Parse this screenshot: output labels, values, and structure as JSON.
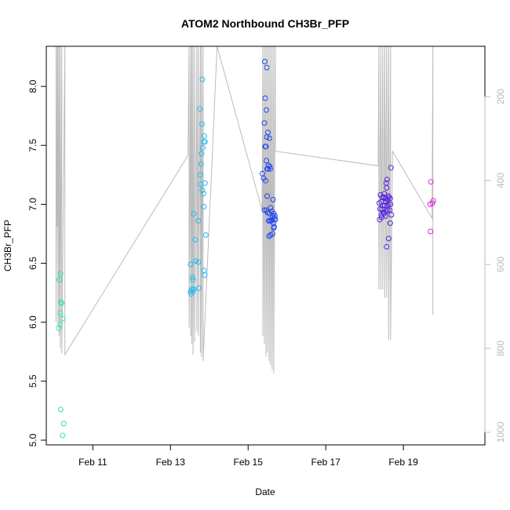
{
  "chart_data": {
    "type": "scatter",
    "title": "ATOM2 Northbound CH3Br_PFP",
    "xlabel": "Date",
    "ylabel": "CH3Br_PFP",
    "xlim": [
      9.8,
      21.1
    ],
    "ylim": [
      4.96,
      8.34
    ],
    "x_ticks": [
      {
        "value": 11,
        "label": "Feb 11"
      },
      {
        "value": 13,
        "label": "Feb 13"
      },
      {
        "value": 15,
        "label": "Feb 15"
      },
      {
        "value": 17,
        "label": "Feb 17"
      },
      {
        "value": 19,
        "label": "Feb 19"
      }
    ],
    "y_ticks": [
      {
        "value": 5.0,
        "label": "5.0"
      },
      {
        "value": 5.5,
        "label": "5.5"
      },
      {
        "value": 6.0,
        "label": "6.0"
      },
      {
        "value": 6.5,
        "label": "6.5"
      },
      {
        "value": 7.0,
        "label": "7.0"
      },
      {
        "value": 7.5,
        "label": "7.5"
      },
      {
        "value": 8.0,
        "label": "8.0"
      }
    ],
    "y2_ticks": [
      {
        "value": 200,
        "label": "200"
      },
      {
        "value": 400,
        "label": "400"
      },
      {
        "value": 600,
        "label": "600"
      },
      {
        "value": 800,
        "label": "800"
      },
      {
        "value": 1000,
        "label": "1000"
      }
    ],
    "y2lim": [
      1030,
      80
    ],
    "y2_reversed": true,
    "point_style": "open-circle",
    "series": [
      {
        "color": "#33e0a8",
        "points": [
          [
            10.17,
            6.41
          ],
          [
            10.14,
            6.36
          ],
          [
            10.18,
            6.17
          ],
          [
            10.2,
            6.16
          ],
          [
            10.16,
            6.08
          ],
          [
            10.22,
            6.03
          ],
          [
            10.15,
            5.98
          ],
          [
            10.12,
            5.95
          ],
          [
            10.17,
            5.26
          ],
          [
            10.25,
            5.14
          ],
          [
            10.22,
            5.04
          ]
        ]
      },
      {
        "color": "#22bbee",
        "points": [
          [
            13.82,
            8.06
          ],
          [
            13.76,
            7.81
          ],
          [
            13.81,
            7.68
          ],
          [
            13.87,
            7.58
          ],
          [
            13.86,
            7.53
          ],
          [
            13.89,
            7.53
          ],
          [
            13.83,
            7.48
          ],
          [
            13.8,
            7.43
          ],
          [
            13.79,
            7.34
          ],
          [
            13.77,
            7.25
          ],
          [
            13.89,
            7.18
          ],
          [
            13.78,
            7.17
          ],
          [
            13.82,
            7.12
          ],
          [
            13.85,
            7.09
          ],
          [
            13.86,
            6.98
          ],
          [
            13.6,
            6.92
          ],
          [
            13.72,
            6.86
          ],
          [
            13.91,
            6.74
          ],
          [
            13.64,
            6.7
          ],
          [
            13.65,
            6.52
          ],
          [
            13.52,
            6.49
          ],
          [
            13.72,
            6.51
          ],
          [
            13.86,
            6.44
          ],
          [
            13.88,
            6.4
          ],
          [
            13.57,
            6.38
          ],
          [
            13.58,
            6.36
          ],
          [
            13.55,
            6.28
          ],
          [
            13.6,
            6.28
          ],
          [
            13.73,
            6.29
          ],
          [
            13.52,
            6.26
          ],
          [
            13.58,
            6.26
          ],
          [
            13.53,
            6.24
          ]
        ]
      },
      {
        "color": "#2244ee",
        "points": [
          [
            15.43,
            8.21
          ],
          [
            15.48,
            8.16
          ],
          [
            15.44,
            7.9
          ],
          [
            15.47,
            7.8
          ],
          [
            15.42,
            7.69
          ],
          [
            15.51,
            7.61
          ],
          [
            15.48,
            7.57
          ],
          [
            15.55,
            7.56
          ],
          [
            15.44,
            7.49
          ],
          [
            15.46,
            7.49
          ],
          [
            15.47,
            7.37
          ],
          [
            15.52,
            7.33
          ],
          [
            15.56,
            7.32
          ],
          [
            15.51,
            7.3
          ],
          [
            15.49,
            7.3
          ],
          [
            15.57,
            7.3
          ],
          [
            15.37,
            7.26
          ],
          [
            15.4,
            7.22
          ],
          [
            15.45,
            7.2
          ],
          [
            15.64,
            7.04
          ],
          [
            15.49,
            7.07
          ],
          [
            15.42,
            6.95
          ],
          [
            15.47,
            6.95
          ],
          [
            15.5,
            6.93
          ],
          [
            15.55,
            6.92
          ],
          [
            15.58,
            6.97
          ],
          [
            15.61,
            6.94
          ],
          [
            15.63,
            6.9
          ],
          [
            15.66,
            6.92
          ],
          [
            15.68,
            6.88
          ],
          [
            15.69,
            6.9
          ],
          [
            15.62,
            6.87
          ],
          [
            15.65,
            6.84
          ],
          [
            15.6,
            6.86
          ],
          [
            15.7,
            6.87
          ],
          [
            15.56,
            6.86
          ],
          [
            15.53,
            6.86
          ],
          [
            15.67,
            6.81
          ],
          [
            15.66,
            6.8
          ],
          [
            15.63,
            6.75
          ],
          [
            15.58,
            6.74
          ],
          [
            15.54,
            6.73
          ]
        ]
      },
      {
        "color": "#5522dd",
        "points": [
          [
            18.58,
            7.21
          ],
          [
            18.56,
            7.18
          ],
          [
            18.68,
            7.31
          ],
          [
            18.57,
            7.14
          ],
          [
            18.51,
            7.09
          ],
          [
            18.61,
            7.07
          ],
          [
            18.63,
            7.06
          ],
          [
            18.41,
            7.08
          ],
          [
            18.5,
            7.06
          ],
          [
            18.46,
            7.06
          ],
          [
            18.54,
            7.05
          ],
          [
            18.66,
            7.05
          ],
          [
            18.59,
            7.04
          ],
          [
            18.38,
            7.01
          ],
          [
            18.43,
            7.02
          ],
          [
            18.55,
            7.02
          ],
          [
            18.62,
            7.0
          ],
          [
            18.67,
            7.0
          ],
          [
            18.47,
            6.99
          ],
          [
            18.52,
            6.99
          ],
          [
            18.58,
            6.99
          ],
          [
            18.4,
            6.96
          ],
          [
            18.45,
            6.96
          ],
          [
            18.6,
            6.95
          ],
          [
            18.65,
            6.95
          ],
          [
            18.56,
            6.94
          ],
          [
            18.48,
            6.93
          ],
          [
            18.69,
            6.91
          ],
          [
            18.43,
            6.91
          ],
          [
            18.5,
            6.92
          ],
          [
            18.54,
            6.9
          ],
          [
            18.44,
            6.89
          ],
          [
            18.39,
            6.87
          ],
          [
            18.66,
            6.84
          ],
          [
            18.62,
            6.71
          ],
          [
            18.57,
            6.64
          ]
        ]
      },
      {
        "color": "#dd22dd",
        "points": [
          [
            19.71,
            7.19
          ],
          [
            19.77,
            7.03
          ],
          [
            19.75,
            7.01
          ],
          [
            19.69,
            7.0
          ],
          [
            19.7,
            6.77
          ]
        ]
      }
    ],
    "secondary_line": {
      "color": "#bbbbbb",
      "axis": "right",
      "points": [
        [
          10.05,
          80
        ],
        [
          10.05,
          738
        ],
        [
          10.08,
          80
        ],
        [
          10.08,
          510
        ],
        [
          10.1,
          80
        ],
        [
          10.1,
          740
        ],
        [
          10.13,
          80
        ],
        [
          10.13,
          770
        ],
        [
          10.16,
          80
        ],
        [
          10.16,
          800
        ],
        [
          10.2,
          80
        ],
        [
          10.2,
          812
        ],
        [
          10.28,
          80
        ],
        [
          10.28,
          815
        ],
        [
          13.45,
          340
        ],
        [
          13.48,
          80
        ],
        [
          13.48,
          750
        ],
        [
          13.52,
          80
        ],
        [
          13.52,
          770
        ],
        [
          13.55,
          80
        ],
        [
          13.55,
          790
        ],
        [
          13.58,
          80
        ],
        [
          13.58,
          815
        ],
        [
          13.62,
          80
        ],
        [
          13.62,
          785
        ],
        [
          13.68,
          80
        ],
        [
          13.68,
          760
        ],
        [
          13.72,
          80
        ],
        [
          13.72,
          770
        ],
        [
          13.77,
          80
        ],
        [
          13.77,
          810
        ],
        [
          13.8,
          80
        ],
        [
          13.8,
          820
        ],
        [
          13.84,
          80
        ],
        [
          13.84,
          830
        ],
        [
          14.2,
          80
        ],
        [
          15.36,
          470
        ],
        [
          15.38,
          80
        ],
        [
          15.38,
          770
        ],
        [
          15.42,
          80
        ],
        [
          15.42,
          790
        ],
        [
          15.46,
          80
        ],
        [
          15.46,
          820
        ],
        [
          15.5,
          80
        ],
        [
          15.5,
          810
        ],
        [
          15.54,
          80
        ],
        [
          15.54,
          830
        ],
        [
          15.58,
          80
        ],
        [
          15.58,
          840
        ],
        [
          15.62,
          80
        ],
        [
          15.62,
          850
        ],
        [
          15.66,
          80
        ],
        [
          15.66,
          860
        ],
        [
          15.7,
          80
        ],
        [
          15.7,
          330
        ],
        [
          18.35,
          365
        ],
        [
          18.37,
          80
        ],
        [
          18.37,
          660
        ],
        [
          18.42,
          80
        ],
        [
          18.42,
          660
        ],
        [
          18.47,
          80
        ],
        [
          18.47,
          660
        ],
        [
          18.52,
          80
        ],
        [
          18.52,
          680
        ],
        [
          18.57,
          80
        ],
        [
          18.57,
          680
        ],
        [
          18.62,
          80
        ],
        [
          18.62,
          780
        ],
        [
          18.67,
          80
        ],
        [
          18.67,
          780
        ],
        [
          18.72,
          330
        ],
        [
          19.74,
          490
        ],
        [
          19.76,
          80
        ],
        [
          19.76,
          720
        ]
      ]
    }
  }
}
